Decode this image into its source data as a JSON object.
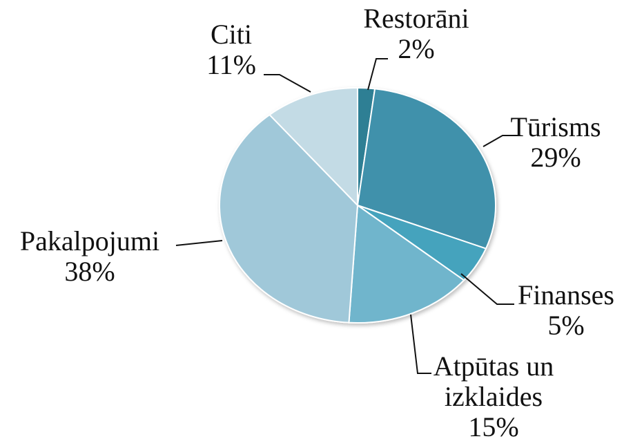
{
  "chart_data": {
    "type": "pie",
    "categories": [
      "Restorāni",
      "Tūrisms",
      "Finanses",
      "Atpūtas un izklaides",
      "Pakalpojumi",
      "Citi"
    ],
    "values": [
      2,
      29,
      5,
      15,
      38,
      11
    ],
    "value_labels": [
      "2%",
      "29%",
      "5%",
      "15%",
      "38%",
      "11%"
    ],
    "colors": [
      "#2e7f94",
      "#3f91ab",
      "#45a3bd",
      "#6fb5cc",
      "#a0c8d9",
      "#c3dbe5"
    ]
  }
}
